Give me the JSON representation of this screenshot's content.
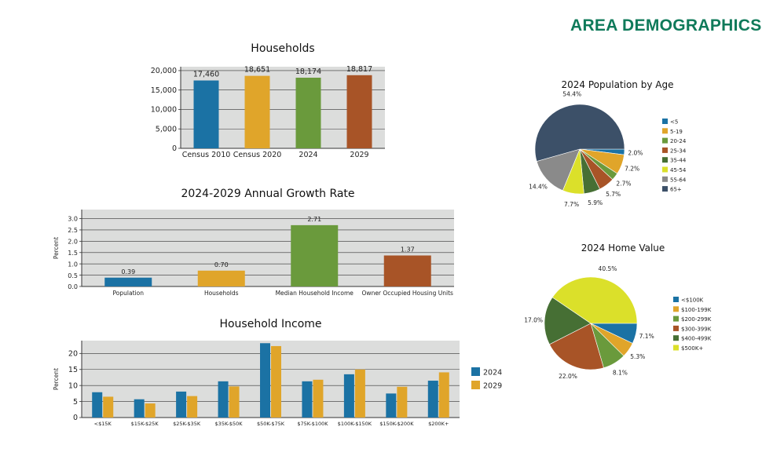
{
  "page_title": "AREA DEMOGRAPHICS",
  "colors": {
    "blue": "#1b72a4",
    "gold": "#e0a52a",
    "green": "#6a9a3c",
    "rust": "#a85427",
    "plot_bg": "#dcdddc",
    "title_green": "#0f7a5a"
  },
  "chart_data": [
    {
      "id": "households",
      "type": "bar",
      "title": "Households",
      "categories": [
        "Census 2010",
        "Census 2020",
        "2024",
        "2029"
      ],
      "values": [
        17460,
        18651,
        18174,
        18817
      ],
      "value_labels": [
        "17,460",
        "18,651",
        "18,174",
        "18,817"
      ],
      "bar_colors": [
        "#1b72a4",
        "#e0a52a",
        "#6a9a3c",
        "#a85427"
      ],
      "ylim": [
        0,
        21000
      ],
      "yticks": [
        0,
        5000,
        10000,
        15000,
        20000
      ],
      "ytick_labels": [
        "0",
        "5,000",
        "10,000",
        "15,000",
        "20,000"
      ],
      "xlabel": "",
      "ylabel": ""
    },
    {
      "id": "growth",
      "type": "bar",
      "title": "2024-2029 Annual Growth Rate",
      "categories": [
        "Population",
        "Households",
        "Median Household Income",
        "Owner Occupied Housing Units"
      ],
      "values": [
        0.39,
        0.7,
        2.71,
        1.37
      ],
      "value_labels": [
        "0.39",
        "0.70",
        "2.71",
        "1.37"
      ],
      "bar_colors": [
        "#1b72a4",
        "#e0a52a",
        "#6a9a3c",
        "#a85427"
      ],
      "ylim": [
        0,
        3.4
      ],
      "yticks": [
        0,
        0.5,
        1.0,
        1.5,
        2.0,
        2.5,
        3.0
      ],
      "ytick_labels": [
        "0.0",
        "0.5",
        "1.0",
        "1.5",
        "2.0",
        "2.5",
        "3.0"
      ],
      "xlabel": "",
      "ylabel": "Percent"
    },
    {
      "id": "income",
      "type": "bar",
      "title": "Household Income",
      "categories": [
        "<$15K",
        "$15K-$25K",
        "$25K-$35K",
        "$35K-$50K",
        "$50K-$75K",
        "$75K-$100K",
        "$100K-$150K",
        "$150K-$200K",
        "$200K+"
      ],
      "series": [
        {
          "name": "2024",
          "color": "#1b72a4",
          "values": [
            7.9,
            5.7,
            8.1,
            11.3,
            23.2,
            11.3,
            13.5,
            7.5,
            11.5
          ]
        },
        {
          "name": "2029",
          "color": "#e0a52a",
          "values": [
            6.5,
            4.4,
            6.7,
            9.7,
            22.3,
            11.8,
            15.0,
            9.6,
            14.1
          ]
        }
      ],
      "ylim": [
        0,
        24
      ],
      "yticks": [
        0,
        5,
        10,
        15,
        20
      ],
      "ytick_labels": [
        "0",
        "5",
        "10",
        "15",
        "20"
      ],
      "xlabel": "",
      "ylabel": "Percent",
      "legend": "right"
    },
    {
      "id": "age",
      "type": "pie",
      "title": "2024 Population by Age",
      "labels": [
        "<5",
        "5-19",
        "20-24",
        "25-34",
        "35-44",
        "45-54",
        "55-64",
        "65+"
      ],
      "values": [
        2.0,
        7.2,
        2.7,
        5.7,
        5.9,
        7.7,
        14.4,
        54.4
      ],
      "value_labels": [
        "2.0%",
        "7.2%",
        "2.7%",
        "5.7%",
        "5.9%",
        "7.7%",
        "14.4%",
        "54.4%"
      ],
      "colors": [
        "#1b72a4",
        "#e0a52a",
        "#6a9a3c",
        "#a85427",
        "#466f34",
        "#dbe02a",
        "#8a8a8a",
        "#3c5068"
      ],
      "legend": "right"
    },
    {
      "id": "home",
      "type": "pie",
      "title": "2024 Home Value",
      "labels": [
        "<$100K",
        "$100-199K",
        "$200-299K",
        "$300-399K",
        "$400-499K",
        "$500K+"
      ],
      "values": [
        7.1,
        5.3,
        8.1,
        22.0,
        17.0,
        40.5
      ],
      "value_labels": [
        "7.1%",
        "5.3%",
        "8.1%",
        "22.0%",
        "17.0%",
        "40.5%"
      ],
      "colors": [
        "#1b72a4",
        "#e0a52a",
        "#6a9a3c",
        "#a85427",
        "#466f34",
        "#dbe02a"
      ],
      "legend": "right"
    }
  ]
}
